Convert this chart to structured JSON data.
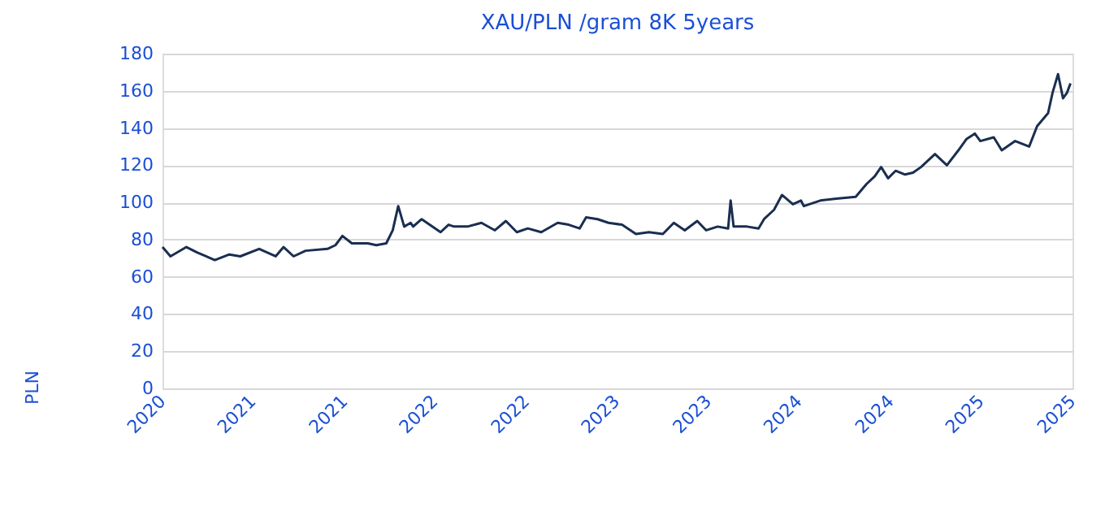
{
  "chart_data": {
    "type": "line",
    "title": "XAU/PLN /gram 8K 5years",
    "ylabel": "PLN",
    "x": [
      "2020-11-01",
      "2020-11-17",
      "2020-12-19",
      "2021-01-10",
      "2021-02-14",
      "2021-03-15",
      "2021-04-06",
      "2021-05-14",
      "2021-06-16",
      "2021-07-02",
      "2021-07-22",
      "2021-08-15",
      "2021-09-28",
      "2021-10-14",
      "2021-10-28",
      "2021-11-16",
      "2021-12-18",
      "2022-01-04",
      "2022-01-24",
      "2022-02-06",
      "2022-02-17",
      "2022-03-01",
      "2022-03-14",
      "2022-03-19",
      "2022-04-05",
      "2022-04-21",
      "2022-05-13",
      "2022-05-29",
      "2022-06-09",
      "2022-07-06",
      "2022-08-03",
      "2022-08-30",
      "2022-09-21",
      "2022-10-13",
      "2022-11-04",
      "2022-12-01",
      "2023-01-03",
      "2023-01-25",
      "2023-02-16",
      "2023-03-01",
      "2023-03-24",
      "2023-04-15",
      "2023-05-12",
      "2023-06-09",
      "2023-07-05",
      "2023-08-02",
      "2023-08-24",
      "2023-09-15",
      "2023-10-10",
      "2023-10-28",
      "2023-11-20",
      "2023-12-11",
      "2023-12-16",
      "2023-12-22",
      "2024-01-18",
      "2024-02-10",
      "2024-02-21",
      "2024-03-12",
      "2024-03-28",
      "2024-04-19",
      "2024-05-05",
      "2024-05-11",
      "2024-06-13",
      "2024-07-15",
      "2024-08-23",
      "2024-09-14",
      "2024-09-30",
      "2024-10-13",
      "2024-10-27",
      "2024-11-11",
      "2024-11-30",
      "2024-12-16",
      "2025-01-01",
      "2025-01-29",
      "2025-02-22",
      "2025-03-17",
      "2025-04-02",
      "2025-04-19",
      "2025-04-30",
      "2025-05-27",
      "2025-06-12",
      "2025-07-09",
      "2025-08-06",
      "2025-08-22",
      "2025-09-13",
      "2025-09-22",
      "2025-10-03",
      "2025-10-13",
      "2025-10-21",
      "2025-10-28"
    ],
    "series": [
      {
        "color": "#1a2e50",
        "values": [
          76,
          71,
          76,
          73,
          69,
          72,
          71,
          75,
          71,
          76,
          71,
          74,
          75,
          77,
          82,
          78,
          78,
          77,
          78,
          85,
          98,
          87,
          89,
          87,
          91,
          88,
          84,
          88,
          87,
          87,
          89,
          85,
          90,
          84,
          86,
          84,
          89,
          88,
          86,
          92,
          91,
          89,
          88,
          83,
          84,
          83,
          89,
          85,
          90,
          85,
          87,
          86,
          101,
          87,
          87,
          86,
          91,
          96,
          104,
          99,
          101,
          98,
          101,
          102,
          103,
          110,
          114,
          119,
          113,
          117,
          115,
          116,
          119,
          126,
          120,
          128,
          134,
          137,
          133,
          135,
          128,
          133,
          130,
          141,
          148,
          159,
          169,
          156,
          159,
          164
        ]
      }
    ],
    "xlim": [
      "2020-11-01",
      "2025-11-01"
    ],
    "xticks": [
      {
        "value": "2020-11-01",
        "label": "2020"
      },
      {
        "value": "2021-05-01",
        "label": "2021"
      },
      {
        "value": "2021-11-01",
        "label": "2021"
      },
      {
        "value": "2022-05-01",
        "label": "2022"
      },
      {
        "value": "2022-11-01",
        "label": "2022"
      },
      {
        "value": "2023-05-01",
        "label": "2023"
      },
      {
        "value": "2023-11-01",
        "label": "2023"
      },
      {
        "value": "2024-05-01",
        "label": "2024"
      },
      {
        "value": "2024-11-01",
        "label": "2024"
      },
      {
        "value": "2025-05-01",
        "label": "2025"
      },
      {
        "value": "2025-11-01",
        "label": "2025"
      }
    ],
    "ylim": [
      0,
      180
    ],
    "yticks": [
      0,
      20,
      40,
      60,
      80,
      100,
      120,
      140,
      160,
      180
    ],
    "grid": "y"
  }
}
